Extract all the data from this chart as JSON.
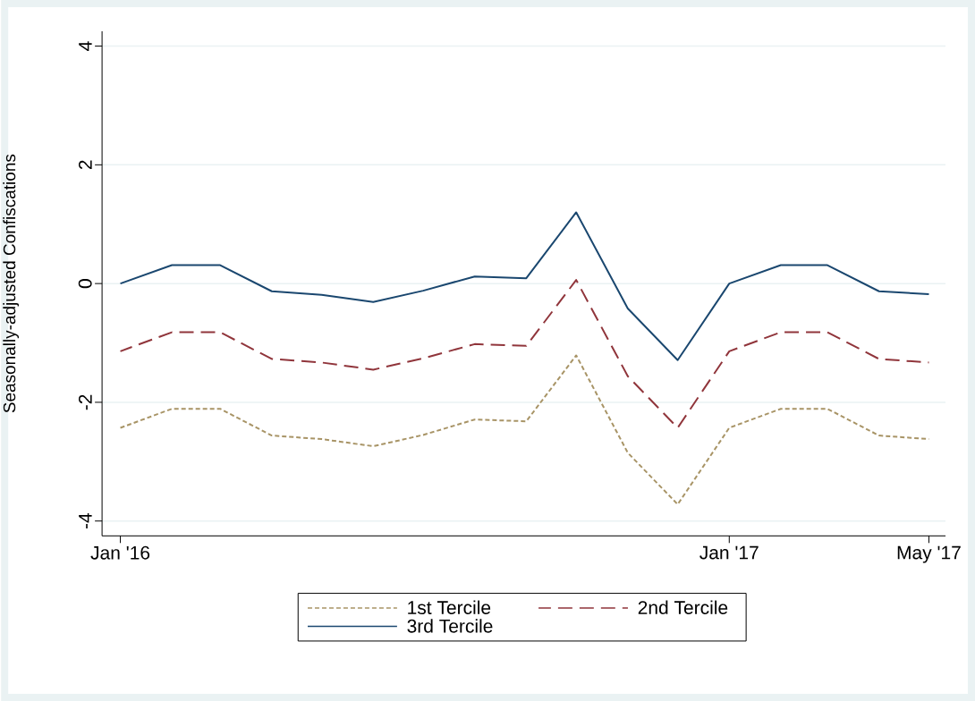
{
  "chart_data": {
    "type": "line",
    "ylabel": "Seasonally-adjusted Confiscations",
    "x": [
      "2016-01",
      "2016-02",
      "2016-03",
      "2016-04",
      "2016-05",
      "2016-06",
      "2016-07",
      "2016-08",
      "2016-09",
      "2016-10",
      "2016-11",
      "2016-12",
      "2017-01",
      "2017-02",
      "2017-03",
      "2017-04",
      "2017-05"
    ],
    "series": [
      {
        "name": "1st Tercile",
        "color": "#a89466",
        "line_style": "dotted",
        "values": [
          -2.43,
          -2.11,
          -2.11,
          -2.56,
          -2.62,
          -2.74,
          -2.55,
          -2.29,
          -2.32,
          -1.21,
          -2.85,
          -3.72,
          -2.43,
          -2.11,
          -2.11,
          -2.56,
          -2.62
        ]
      },
      {
        "name": "2nd Tercile",
        "color": "#90353b",
        "line_style": "dashed",
        "values": [
          -1.14,
          -0.82,
          -0.82,
          -1.27,
          -1.33,
          -1.45,
          -1.26,
          -1.02,
          -1.05,
          0.06,
          -1.56,
          -2.43,
          -1.14,
          -0.82,
          -0.82,
          -1.27,
          -1.33
        ]
      },
      {
        "name": "3rd Tercile",
        "color": "#1a476f",
        "line_style": "solid",
        "values": [
          0,
          0.31,
          0.31,
          -0.13,
          -0.19,
          -0.31,
          -0.12,
          0.12,
          0.09,
          1.2,
          -0.42,
          -1.29,
          0,
          0.31,
          0.31,
          -0.13,
          -0.18
        ]
      }
    ],
    "xlim": [
      "2015-12-21",
      "2017-05-11"
    ],
    "xticks": [
      {
        "value": "2016-01",
        "label": "Jan '16"
      },
      {
        "value": "2017-01",
        "label": "Jan '17"
      },
      {
        "value": "2017-05",
        "label": "May '17"
      }
    ],
    "ylim": [
      -4.25,
      4.25
    ],
    "yticks": [
      -4,
      -2,
      0,
      2,
      4
    ],
    "grid": "y",
    "legend": "bottom",
    "marker": "none"
  }
}
